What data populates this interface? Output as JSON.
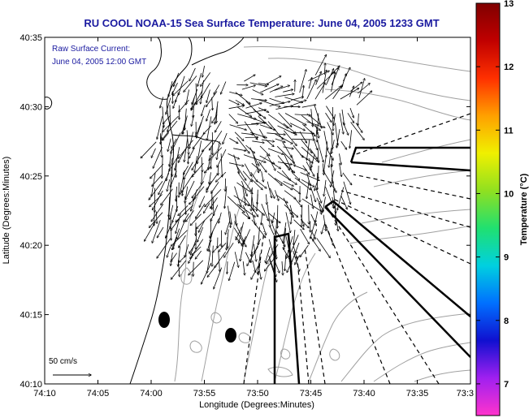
{
  "title": "RU COOL  NOAA-15  Sea Surface Temperature:  June 04, 2005 1233 GMT",
  "annotation": {
    "line1": "Raw Surface Current:",
    "line2": "June 04, 2005 12:00 GMT"
  },
  "scale_label": "50 cm/s",
  "map": {
    "xlabel": "Longitude (Degrees:Minutes)",
    "ylabel": "Latitude (Degrees:Minutes)",
    "lon_ticks": [
      "74:10",
      "74:05",
      "74:00",
      "73:55",
      "73:50",
      "73:45",
      "73:40",
      "73:35",
      "73:3"
    ],
    "lat_ticks": [
      "40:10",
      "40:15",
      "40:20",
      "40:25",
      "40:30",
      "40:35"
    ]
  },
  "colorbar": {
    "label": "Temperature (°C)",
    "min": 6.5,
    "max": 13,
    "ticks": [
      "7",
      "8",
      "9",
      "10",
      "11",
      "12",
      "13"
    ],
    "stops": [
      "#ff33cc",
      "#a020f0",
      "#1010d0",
      "#0070ff",
      "#00d0e0",
      "#20e070",
      "#90e020",
      "#f0f000",
      "#ffa000",
      "#ff3000",
      "#c00000",
      "#800000"
    ]
  },
  "colors": {
    "title": "#1a1aa0",
    "note": "#1a1aa0",
    "contour": "#a0a0a0"
  }
}
